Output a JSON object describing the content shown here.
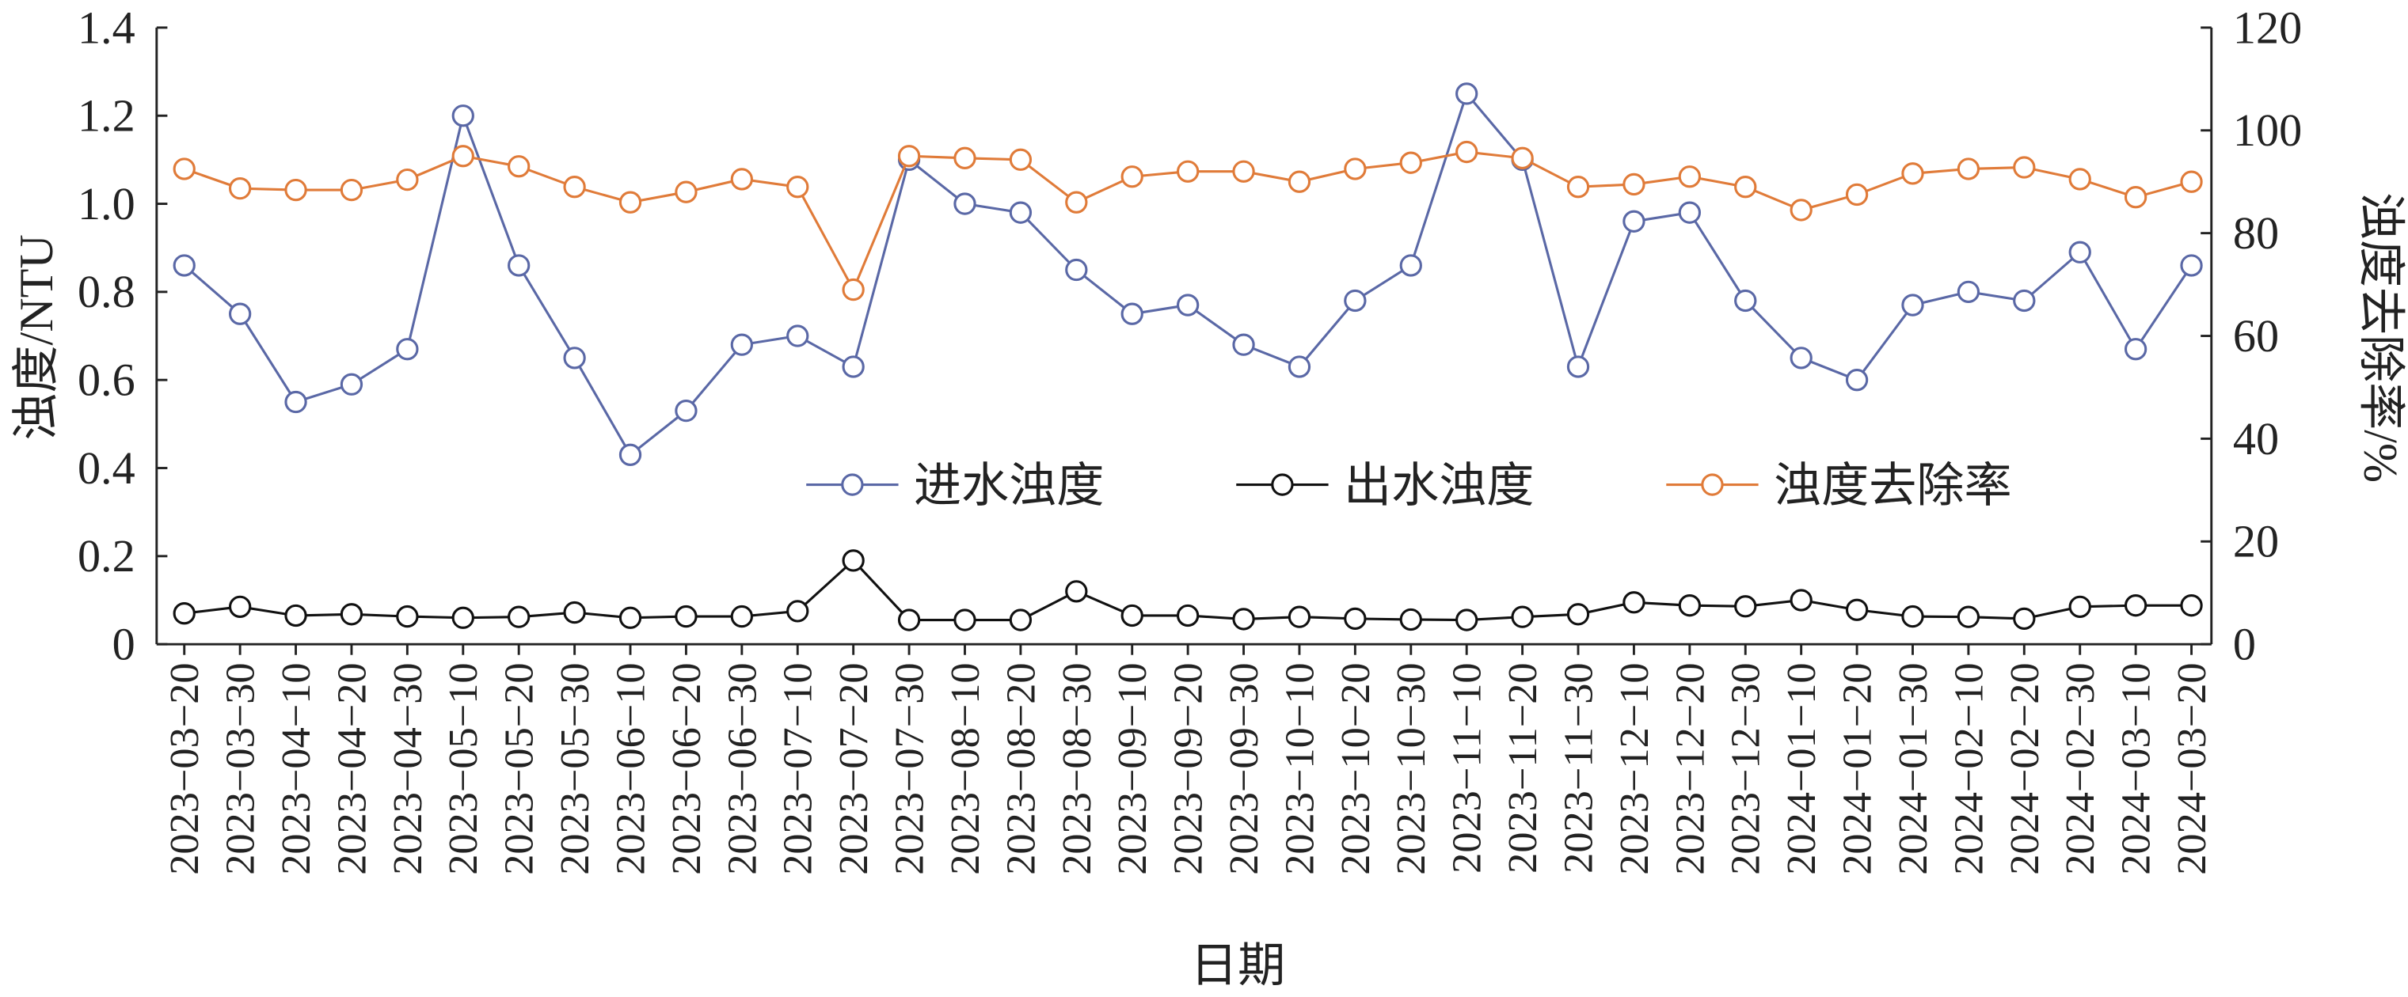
{
  "chart_data": {
    "type": "line",
    "x_label": "日期",
    "y_label": "浊度/NTU",
    "y2_label": "浊度去除率/%",
    "categories": [
      "2023−03−20",
      "2023−03−30",
      "2023−04−10",
      "2023−04−20",
      "2023−04−30",
      "2023−05−10",
      "2023−05−20",
      "2023−05−30",
      "2023−06−10",
      "2023−06−20",
      "2023−06−30",
      "2023−07−10",
      "2023−07−20",
      "2023−07−30",
      "2023−08−10",
      "2023−08−20",
      "2023−08−30",
      "2023−09−10",
      "2023−09−20",
      "2023−09−30",
      "2023−10−10",
      "2023−10−20",
      "2023−10−30",
      "2023−11−10",
      "2023−11−20",
      "2023−11−30",
      "2023−12−10",
      "2023−12−20",
      "2023−12−30",
      "2024−01−10",
      "2024−01−20",
      "2024−01−30",
      "2024−02−10",
      "2024−02−20",
      "2024−02−30",
      "2024−03−10",
      "2024−03−20"
    ],
    "series": [
      {
        "name": "进水浊度",
        "color": "#5a68a6",
        "values": [
          0.86,
          0.75,
          0.55,
          0.59,
          0.67,
          1.2,
          0.86,
          0.65,
          0.43,
          0.53,
          0.68,
          0.7,
          0.63,
          1.1,
          1.0,
          0.98,
          0.85,
          0.75,
          0.77,
          0.68,
          0.63,
          0.78,
          0.86,
          1.25,
          1.1,
          0.63,
          0.96,
          0.98,
          0.78,
          0.65,
          0.6,
          0.77,
          0.8,
          0.78,
          0.89,
          0.67,
          0.86
        ]
      },
      {
        "name": "出水浊度",
        "color": "#111111",
        "values": [
          0.07,
          0.085,
          0.065,
          0.068,
          0.063,
          0.06,
          0.062,
          0.072,
          0.06,
          0.063,
          0.063,
          0.075,
          0.19,
          0.055,
          0.055,
          0.055,
          0.12,
          0.065,
          0.065,
          0.057,
          0.062,
          0.058,
          0.056,
          0.055,
          0.062,
          0.068,
          0.095,
          0.088,
          0.086,
          0.1,
          0.078,
          0.063,
          0.062,
          0.058,
          0.085,
          0.088,
          0.088
        ]
      },
      {
        "name": "浊度去除率",
        "color": "#e07b39",
        "axis": "y2",
        "values": [
          92.5,
          88.7,
          88.4,
          88.4,
          90.4,
          95,
          93,
          89,
          86,
          88,
          90.5,
          89,
          69,
          95,
          94.6,
          94.3,
          86,
          91,
          92,
          92,
          90,
          92.5,
          93.7,
          95.8,
          94.6,
          89,
          89.5,
          91,
          89,
          84.5,
          87.5,
          91.6,
          92.5,
          92.8,
          90.5,
          87,
          90
        ]
      }
    ],
    "ylim": [
      0,
      1.4
    ],
    "yticks": [
      0,
      0.2,
      0.4,
      0.6,
      0.8,
      {
        "value": 1,
        "label": "1.0"
      },
      1.2,
      1.4
    ],
    "y2lim": [
      0,
      120
    ],
    "y2ticks": [
      0,
      20,
      40,
      60,
      80,
      100,
      120
    ],
    "grid": false,
    "legend": "center"
  }
}
